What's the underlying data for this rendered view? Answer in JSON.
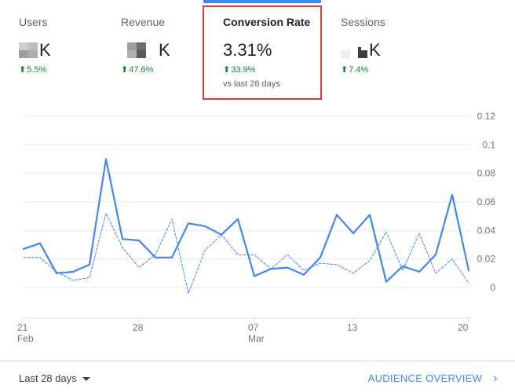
{
  "metrics": [
    {
      "key": "users",
      "title": "Users",
      "value_suffix": "K",
      "delta": "5.5%",
      "delta_dir": "up"
    },
    {
      "key": "revenue",
      "title": "Revenue",
      "value_suffix": "K",
      "delta": "47.6%",
      "delta_dir": "up"
    },
    {
      "key": "conversion",
      "title": "Conversion Rate",
      "value": "3.31%",
      "delta": "33.9%",
      "delta_dir": "up",
      "comparison": "vs last 28 days",
      "active": true
    },
    {
      "key": "sessions",
      "title": "Sessions",
      "value_suffix": "K",
      "delta": "7.4%",
      "delta_dir": "up"
    }
  ],
  "colors": {
    "accent": "#4285f4",
    "positive": "#188038",
    "highlight": "#e53935",
    "grid": "#e8eaed"
  },
  "chart_data": {
    "type": "line",
    "y_ticks": [
      "0.12",
      "0.1",
      "0.08",
      "0.06",
      "0.04",
      "0.02",
      "0"
    ],
    "ylim": [
      0,
      0.12
    ],
    "x_tick_labels": [
      {
        "day": "21",
        "month": "Feb"
      },
      {
        "day": "28",
        "month": ""
      },
      {
        "day": "07",
        "month": "Mar"
      },
      {
        "day": "13",
        "month": ""
      },
      {
        "day": "20",
        "month": ""
      }
    ],
    "x_ticks": [
      "21 Feb",
      "28 Feb",
      "07 Mar",
      "13 Mar",
      "20 Mar"
    ],
    "series": [
      {
        "style": "solid",
        "values": [
          0.027,
          0.031,
          0.01,
          0.011,
          0.016,
          0.09,
          0.034,
          0.033,
          0.021,
          0.021,
          0.045,
          0.043,
          0.037,
          0.048,
          0.008,
          0.013,
          0.014,
          0.009,
          0.021,
          0.051,
          0.038,
          0.051,
          0.004,
          0.015,
          0.011,
          0.023,
          0.065,
          0.012
        ]
      },
      {
        "style": "dashed",
        "values": [
          0.021,
          0.021,
          0.011,
          0.005,
          0.007,
          0.052,
          0.028,
          0.014,
          0.023,
          0.048,
          -0.004,
          0.026,
          0.037,
          0.023,
          0.023,
          0.013,
          0.023,
          0.012,
          0.017,
          0.016,
          0.01,
          0.019,
          0.039,
          0.012,
          0.038,
          0.01,
          0.02,
          0.003
        ]
      }
    ]
  },
  "footer": {
    "date_range": "Last 28 days",
    "link": "AUDIENCE OVERVIEW"
  }
}
